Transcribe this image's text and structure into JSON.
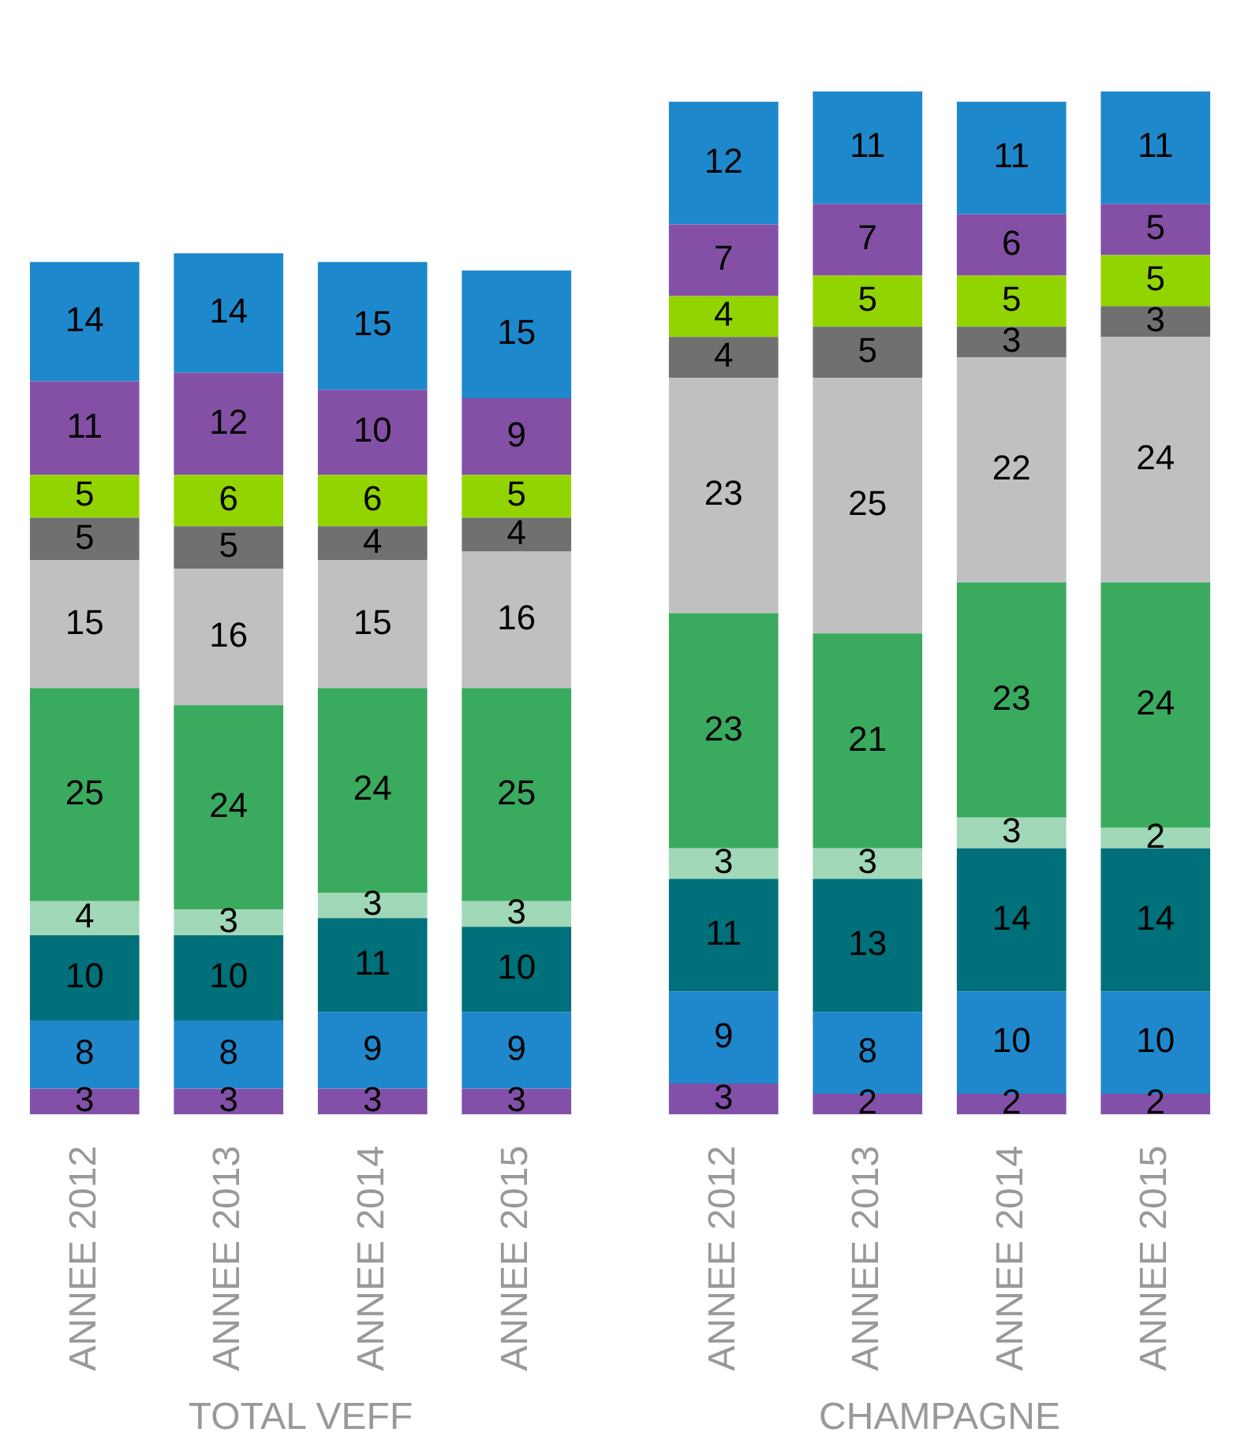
{
  "chart_data": [
    {
      "type": "bar",
      "xlabel": "TOTAL VEFF",
      "categories": [
        "ANNEE 2012",
        "ANNEE 2013",
        "ANNEE 2014",
        "ANNEE 2015"
      ],
      "stacked": true,
      "data_labels": true,
      "series": [
        {
          "color": "#8250a8",
          "values": [
            3,
            3,
            3,
            3
          ]
        },
        {
          "color": "#1f88cc",
          "values": [
            8,
            8,
            9,
            9
          ]
        },
        {
          "color": "#00707a",
          "values": [
            10,
            10,
            11,
            10
          ]
        },
        {
          "color": "#a0d8b8",
          "values": [
            4,
            3,
            3,
            3
          ]
        },
        {
          "color": "#3aaa5e",
          "values": [
            25,
            24,
            24,
            25
          ]
        },
        {
          "color": "#c0c0c0",
          "values": [
            15,
            16,
            15,
            16
          ]
        },
        {
          "color": "#707070",
          "values": [
            5,
            5,
            4,
            4
          ]
        },
        {
          "color": "#92d400",
          "values": [
            5,
            6,
            6,
            5
          ]
        },
        {
          "color": "#8350a6",
          "values": [
            11,
            12,
            10,
            9
          ]
        },
        {
          "color": "#1e88cc",
          "values": [
            14,
            14,
            15,
            15
          ]
        }
      ]
    },
    {
      "type": "bar",
      "xlabel": "CHAMPAGNE",
      "categories": [
        "ANNEE 2012",
        "ANNEE 2013",
        "ANNEE 2014",
        "ANNEE 2015"
      ],
      "stacked": true,
      "data_labels": true,
      "series": [
        {
          "color": "#8250a8",
          "values": [
            3,
            2,
            2,
            2
          ]
        },
        {
          "color": "#1f88cc",
          "values": [
            9,
            8,
            10,
            10
          ]
        },
        {
          "color": "#00707a",
          "values": [
            11,
            13,
            14,
            14
          ]
        },
        {
          "color": "#a0d8b8",
          "values": [
            3,
            3,
            3,
            2
          ]
        },
        {
          "color": "#3aaa5e",
          "values": [
            23,
            21,
            23,
            24
          ]
        },
        {
          "color": "#c0c0c0",
          "values": [
            23,
            25,
            22,
            24
          ]
        },
        {
          "color": "#707070",
          "values": [
            4,
            5,
            3,
            3
          ]
        },
        {
          "color": "#92d400",
          "values": [
            4,
            5,
            5,
            5
          ]
        },
        {
          "color": "#8350a6",
          "values": [
            7,
            7,
            6,
            5
          ]
        },
        {
          "color": "#1e88cc",
          "values": [
            12,
            11,
            11,
            11
          ]
        }
      ]
    }
  ]
}
